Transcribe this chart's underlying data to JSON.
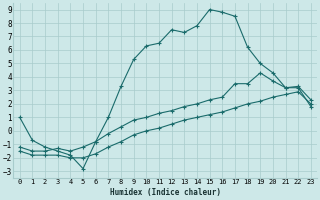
{
  "xlabel": "Humidex (Indice chaleur)",
  "xlim": [
    -0.5,
    23.5
  ],
  "ylim": [
    -3.5,
    9.5
  ],
  "xticks": [
    0,
    1,
    2,
    3,
    4,
    5,
    6,
    7,
    8,
    9,
    10,
    11,
    12,
    13,
    14,
    15,
    16,
    17,
    18,
    19,
    20,
    21,
    22,
    23
  ],
  "yticks": [
    -3,
    -2,
    -1,
    0,
    1,
    2,
    3,
    4,
    5,
    6,
    7,
    8,
    9
  ],
  "background_color": "#cde8e8",
  "grid_color": "#a8cccc",
  "line_color": "#1a6b6b",
  "line1_x": [
    0,
    1,
    2,
    3,
    4,
    5,
    6,
    7,
    8,
    9,
    10,
    11,
    12,
    13,
    14,
    15,
    16,
    17,
    18,
    19,
    20,
    21,
    22,
    23
  ],
  "line1_y": [
    1.0,
    -0.7,
    -1.2,
    -1.5,
    -1.8,
    -2.8,
    -0.8,
    1.0,
    3.3,
    5.3,
    6.3,
    6.5,
    7.5,
    7.3,
    7.8,
    9.0,
    8.8,
    8.5,
    6.2,
    5.0,
    4.3,
    3.2,
    3.2,
    1.8
  ],
  "line2_x": [
    0,
    1,
    2,
    3,
    4,
    5,
    6,
    7,
    8,
    9,
    10,
    11,
    12,
    13,
    14,
    15,
    16,
    17,
    18,
    19,
    20,
    21,
    22,
    23
  ],
  "line2_y": [
    -1.2,
    -1.5,
    -1.5,
    -1.3,
    -1.5,
    -1.2,
    -0.8,
    -0.2,
    0.3,
    0.8,
    1.0,
    1.3,
    1.5,
    1.8,
    2.0,
    2.3,
    2.5,
    3.5,
    3.5,
    4.3,
    3.7,
    3.2,
    3.3,
    2.3
  ],
  "line3_x": [
    0,
    1,
    2,
    3,
    4,
    5,
    6,
    7,
    8,
    9,
    10,
    11,
    12,
    13,
    14,
    15,
    16,
    17,
    18,
    19,
    20,
    21,
    22,
    23
  ],
  "line3_y": [
    -1.5,
    -1.8,
    -1.8,
    -1.8,
    -2.0,
    -2.0,
    -1.7,
    -1.2,
    -0.8,
    -0.3,
    0.0,
    0.2,
    0.5,
    0.8,
    1.0,
    1.2,
    1.4,
    1.7,
    2.0,
    2.2,
    2.5,
    2.7,
    2.9,
    2.0
  ]
}
